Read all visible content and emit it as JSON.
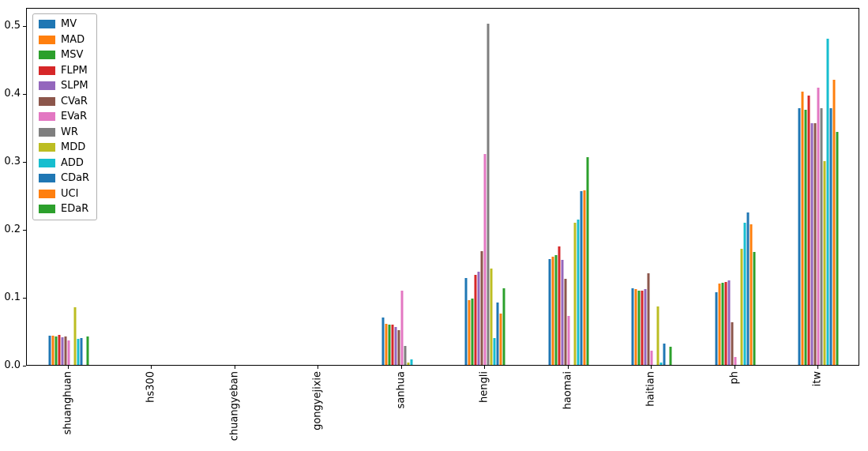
{
  "chart_data": {
    "type": "bar",
    "title": "",
    "xlabel": "",
    "ylabel": "",
    "grid": false,
    "legend_position": "upper left",
    "ylim": [
      0,
      0.527
    ],
    "yticks": [
      0.0,
      0.1,
      0.2,
      0.3,
      0.4,
      0.5
    ],
    "categories": [
      "shuanghuan",
      "hs300",
      "chuangyeban",
      "gongyejixie",
      "sanhua",
      "hengli",
      "haomai",
      "haitian",
      "ph",
      "itw"
    ],
    "series": [
      {
        "name": "MV",
        "color": "#1f77b4",
        "values": [
          0.043,
          0,
          0,
          0,
          0.07,
          0.128,
          0.157,
          0.113,
          0.107,
          0.38
        ]
      },
      {
        "name": "MAD",
        "color": "#ff7f0e",
        "values": [
          0.043,
          0,
          0,
          0,
          0.061,
          0.096,
          0.16,
          0.112,
          0.12,
          0.404
        ]
      },
      {
        "name": "MSV",
        "color": "#2ca02c",
        "values": [
          0.042,
          0,
          0,
          0,
          0.06,
          0.098,
          0.163,
          0.11,
          0.122,
          0.378
        ]
      },
      {
        "name": "FLPM",
        "color": "#d62728",
        "values": [
          0.045,
          0,
          0,
          0,
          0.06,
          0.133,
          0.175,
          0.11,
          0.123,
          0.398
        ]
      },
      {
        "name": "SLPM",
        "color": "#9467bd",
        "values": [
          0.041,
          0,
          0,
          0,
          0.056,
          0.138,
          0.155,
          0.112,
          0.125,
          0.357
        ]
      },
      {
        "name": "CVaR",
        "color": "#8c564b",
        "values": [
          0.042,
          0,
          0,
          0,
          0.052,
          0.168,
          0.127,
          0.135,
          0.063,
          0.358
        ]
      },
      {
        "name": "EVaR",
        "color": "#e377c2",
        "values": [
          0.036,
          0,
          0,
          0,
          0.11,
          0.312,
          0.072,
          0.021,
          0.012,
          0.41
        ]
      },
      {
        "name": "WR",
        "color": "#7f7f7f",
        "values": [
          0.0,
          0,
          0,
          0,
          0.028,
          0.505,
          0.0,
          0.0,
          0.0,
          0.38
        ]
      },
      {
        "name": "MDD",
        "color": "#bcbd22",
        "values": [
          0.085,
          0,
          0,
          0,
          0.004,
          0.143,
          0.21,
          0.087,
          0.172,
          0.302
        ]
      },
      {
        "name": "ADD",
        "color": "#17becf",
        "values": [
          0.038,
          0,
          0,
          0,
          0.008,
          0.04,
          0.215,
          0.004,
          0.21,
          0.483
        ]
      },
      {
        "name": "CDaR",
        "color": "#1f77b4",
        "values": [
          0.04,
          0,
          0,
          0,
          0.0,
          0.092,
          0.257,
          0.032,
          0.225,
          0.38
        ]
      },
      {
        "name": "UCI",
        "color": "#ff7f0e",
        "values": [
          0.0,
          0,
          0,
          0,
          0.0,
          0.076,
          0.258,
          0.0,
          0.208,
          0.422
        ]
      },
      {
        "name": "EDaR",
        "color": "#2ca02c",
        "values": [
          0.042,
          0,
          0,
          0,
          0.0,
          0.113,
          0.307,
          0.027,
          0.167,
          0.345
        ]
      }
    ]
  }
}
